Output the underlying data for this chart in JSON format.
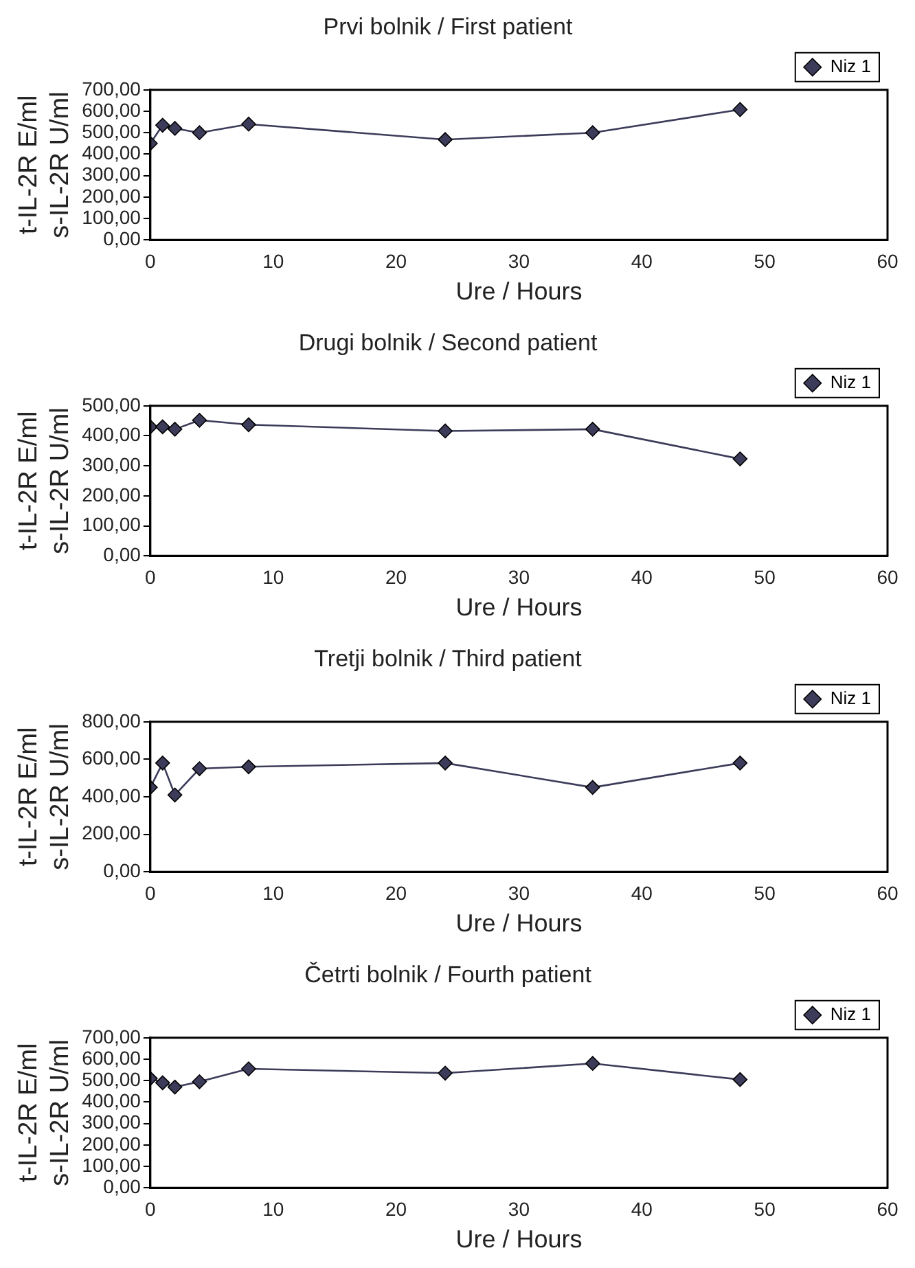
{
  "chart_data": [
    {
      "type": "line",
      "title": "Prvi bolnik / First patient",
      "xlabel": "Ure / Hours",
      "ylabel": "t-IL-2R E/ml\ns-IL-2R U/ml",
      "x": [
        0,
        1,
        2,
        4,
        8,
        24,
        36,
        48
      ],
      "series": [
        {
          "name": "Niz 1",
          "color": "#3c3c5a",
          "values": [
            450,
            535,
            520,
            500,
            540,
            468,
            500,
            608
          ]
        }
      ],
      "xlim": [
        0,
        60
      ],
      "xticks": [
        0,
        10,
        20,
        30,
        40,
        50,
        60
      ],
      "ylim": [
        0,
        700
      ],
      "yticks": [
        {
          "value": 0,
          "label": "0,00"
        },
        {
          "value": 100,
          "label": "100,00"
        },
        {
          "value": 200,
          "label": "200,00"
        },
        {
          "value": 300,
          "label": "300,00"
        },
        {
          "value": 400,
          "label": "400,00"
        },
        {
          "value": 500,
          "label": "500,00"
        },
        {
          "value": 600,
          "label": "600,00"
        },
        {
          "value": 700,
          "label": "700,00"
        }
      ],
      "grid": false,
      "legend": "top right",
      "marker": "diamond",
      "line_style": "solid"
    },
    {
      "type": "line",
      "title": "Drugi bolnik / Second patient",
      "xlabel": "Ure / Hours",
      "ylabel": "t-IL-2R E/ml\ns-IL-2R U/ml",
      "x": [
        0,
        1,
        2,
        4,
        8,
        24,
        36,
        48
      ],
      "series": [
        {
          "name": "Niz 1",
          "color": "#3c3c5a",
          "values": [
            430,
            430,
            422,
            452,
            437,
            416,
            422,
            323
          ]
        }
      ],
      "xlim": [
        0,
        60
      ],
      "xticks": [
        0,
        10,
        20,
        30,
        40,
        50,
        60
      ],
      "ylim": [
        0,
        500
      ],
      "yticks": [
        {
          "value": 0,
          "label": "0,00"
        },
        {
          "value": 100,
          "label": "100,00"
        },
        {
          "value": 200,
          "label": "200,00"
        },
        {
          "value": 300,
          "label": "300,00"
        },
        {
          "value": 400,
          "label": "400,00"
        },
        {
          "value": 500,
          "label": "500,00"
        }
      ],
      "grid": false,
      "legend": "top right",
      "marker": "diamond",
      "line_style": "solid"
    },
    {
      "type": "line",
      "title": "Tretji bolnik / Third patient",
      "xlabel": "Ure / Hours",
      "ylabel": "t-IL-2R E/ml\ns-IL-2R U/ml",
      "x": [
        0,
        1,
        2,
        4,
        8,
        24,
        36,
        48
      ],
      "series": [
        {
          "name": "Niz 1",
          "color": "#3c3c5a",
          "values": [
            450,
            580,
            410,
            550,
            560,
            580,
            450,
            580
          ]
        }
      ],
      "xlim": [
        0,
        60
      ],
      "xticks": [
        0,
        10,
        20,
        30,
        40,
        50,
        60
      ],
      "ylim": [
        0,
        800
      ],
      "yticks": [
        {
          "value": 0,
          "label": "0,00"
        },
        {
          "value": 200,
          "label": "200,00"
        },
        {
          "value": 400,
          "label": "400,00"
        },
        {
          "value": 600,
          "label": "600,00"
        },
        {
          "value": 800,
          "label": "800,00"
        }
      ],
      "grid": false,
      "legend": "top right",
      "marker": "diamond",
      "line_style": "solid"
    },
    {
      "type": "line",
      "title": "Četrti bolnik / Fourth patient",
      "xlabel": "Ure / Hours",
      "ylabel": "t-IL-2R E/ml\ns-IL-2R U/ml",
      "x": [
        0,
        1,
        2,
        4,
        8,
        24,
        36,
        48
      ],
      "series": [
        {
          "name": "Niz 1",
          "color": "#3c3c5a",
          "values": [
            510,
            490,
            470,
            495,
            555,
            535,
            580,
            505
          ]
        }
      ],
      "xlim": [
        0,
        60
      ],
      "xticks": [
        0,
        10,
        20,
        30,
        40,
        50,
        60
      ],
      "ylim": [
        0,
        700
      ],
      "yticks": [
        {
          "value": 0,
          "label": "0,00"
        },
        {
          "value": 100,
          "label": "100,00"
        },
        {
          "value": 200,
          "label": "200,00"
        },
        {
          "value": 300,
          "label": "300,00"
        },
        {
          "value": 400,
          "label": "400,00"
        },
        {
          "value": 500,
          "label": "500,00"
        },
        {
          "value": 600,
          "label": "600,00"
        },
        {
          "value": 700,
          "label": "700,00"
        }
      ],
      "grid": false,
      "legend": "top right",
      "marker": "diamond",
      "line_style": "solid"
    }
  ]
}
